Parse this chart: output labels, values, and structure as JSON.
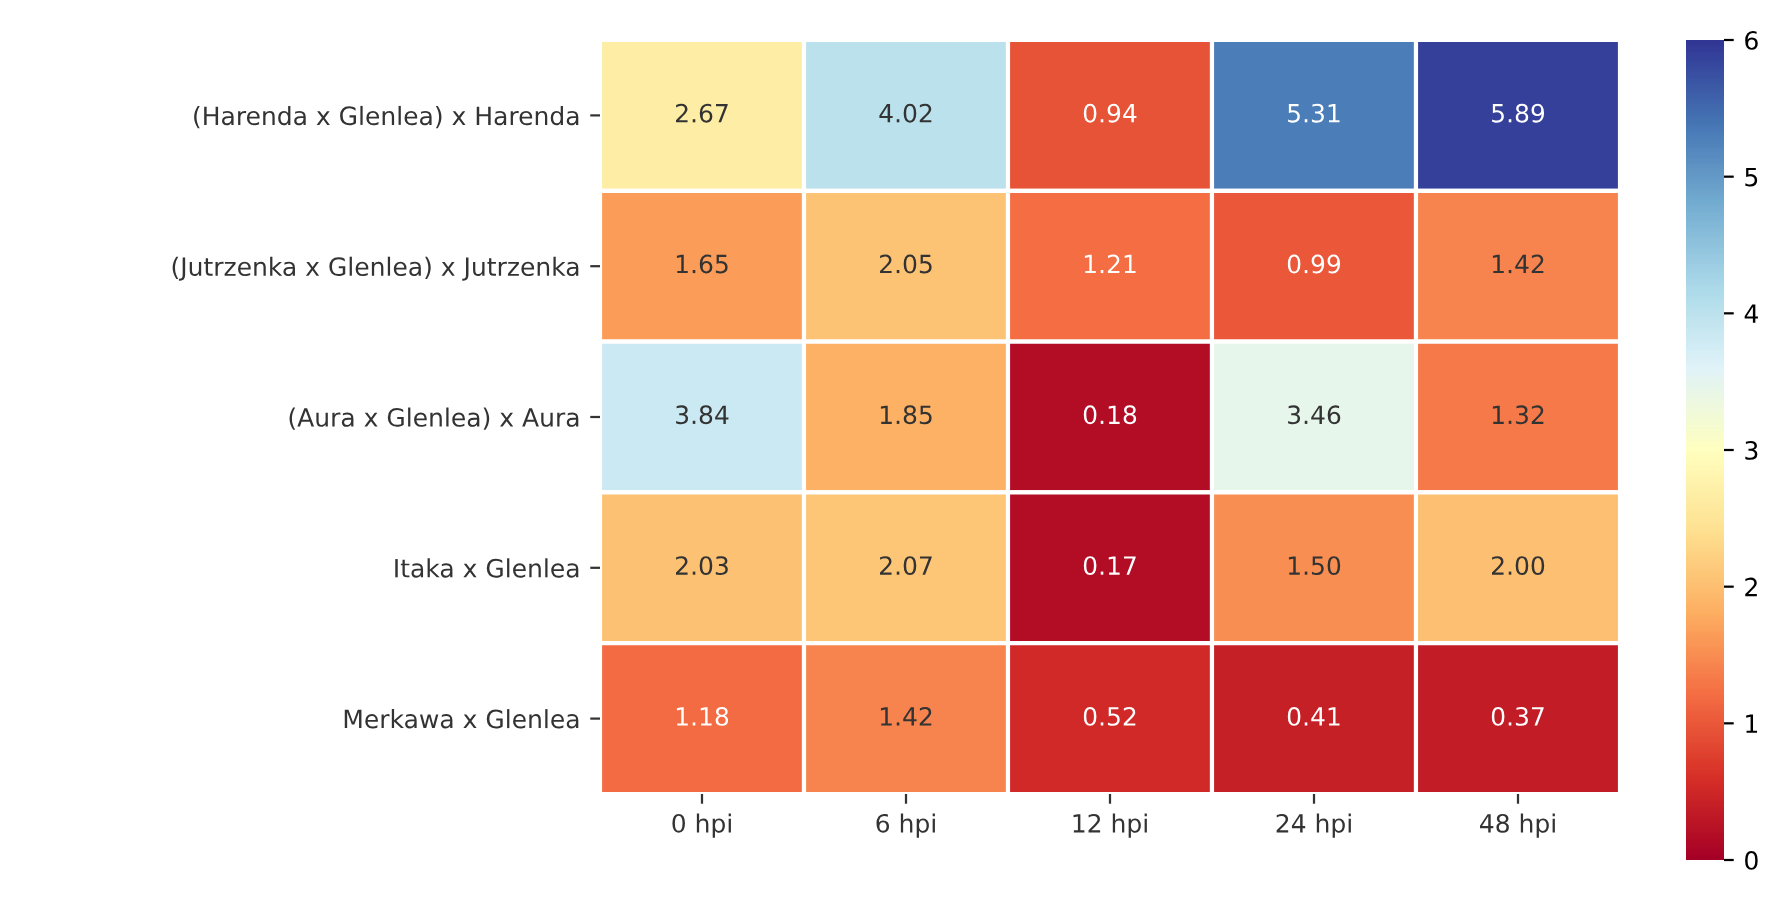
{
  "chart_data": {
    "type": "heatmap",
    "categories": [
      "0 hpi",
      "6 hpi",
      "12 hpi",
      "24 hpi",
      "48 hpi"
    ],
    "y_categories": [
      "(Harenda x Glenlea) x Harenda",
      "(Jutrzenka x Glenlea) x Jutrzenka",
      "(Aura x Glenlea) x Aura",
      "Itaka x Glenlea",
      "Merkawa x Glenlea"
    ],
    "cells": [
      [
        2.67,
        4.02,
        0.94,
        5.31,
        5.89
      ],
      [
        1.65,
        2.05,
        1.21,
        0.99,
        1.42
      ],
      [
        3.84,
        1.85,
        0.18,
        3.46,
        1.32
      ],
      [
        2.03,
        2.07,
        0.17,
        1.5,
        2.0
      ],
      [
        1.18,
        1.42,
        0.52,
        0.41,
        0.37
      ]
    ],
    "cell_labels": [
      [
        "2.67",
        "4.02",
        "0.94",
        "5.31",
        "5.89"
      ],
      [
        "1.65",
        "2.05",
        "1.21",
        "0.99",
        "1.42"
      ],
      [
        "3.84",
        "1.85",
        "0.18",
        "3.46",
        "1.32"
      ],
      [
        "2.03",
        "2.07",
        "0.17",
        "1.50",
        "2.00"
      ],
      [
        "1.18",
        "1.42",
        "0.52",
        "0.41",
        "0.37"
      ]
    ],
    "clim": [
      0,
      6
    ],
    "cticks": [
      0,
      1,
      2,
      3,
      4,
      5,
      6
    ]
  }
}
